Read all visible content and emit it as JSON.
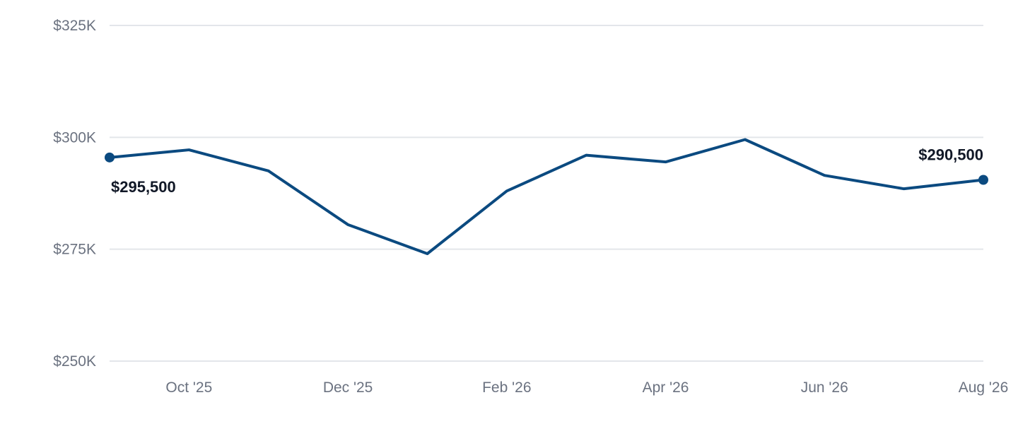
{
  "chart_data": {
    "type": "line",
    "x": [
      "Sep '25",
      "Oct '25",
      "Nov '25",
      "Dec '25",
      "Jan '26",
      "Feb '26",
      "Mar '26",
      "Apr '26",
      "May '26",
      "Jun '26",
      "Jul '26",
      "Aug '26"
    ],
    "x_tick_labels": [
      "Oct '25",
      "Dec '25",
      "Feb '26",
      "Apr '26",
      "Jun '26",
      "Aug '26"
    ],
    "series": [
      {
        "values": [
          295500,
          297200,
          292500,
          280500,
          274000,
          288000,
          296000,
          294500,
          299500,
          291500,
          288500,
          290500
        ]
      }
    ],
    "data_labels": [
      {
        "index": 0,
        "text": "$295,500"
      },
      {
        "index": 11,
        "text": "$290,500"
      }
    ],
    "y_ticks": [
      250000,
      275000,
      300000,
      325000
    ],
    "y_tick_labels": [
      "$250K",
      "$275K",
      "$300K",
      "$325K"
    ],
    "ylim": [
      250000,
      325000
    ],
    "title": "",
    "xlabel": "",
    "ylabel": "",
    "grid": true,
    "legend": "none",
    "colors": {
      "line": "#0b4a80",
      "grid": "#e3e6ea",
      "tick_text": "#6b7280",
      "label_text": "#111827"
    }
  }
}
